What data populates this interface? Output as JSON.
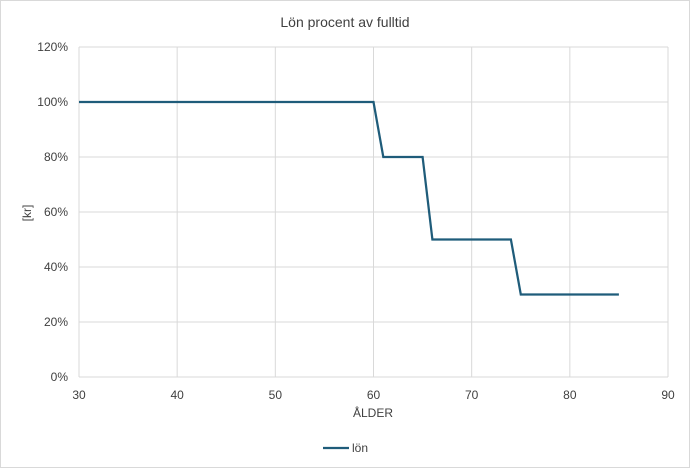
{
  "chart_data": {
    "type": "line",
    "title": "Lön procent av fulltid",
    "xlabel": "ÅLDER",
    "ylabel": "[kr]",
    "xlim": [
      30,
      90
    ],
    "ylim": [
      0,
      120
    ],
    "x_ticks": [
      "30",
      "40",
      "50",
      "60",
      "70",
      "80",
      "90"
    ],
    "y_ticks": [
      "0%",
      "20%",
      "40%",
      "60%",
      "80%",
      "100%",
      "120%"
    ],
    "grid": true,
    "legend_position": "bottom",
    "series": [
      {
        "name": "lön",
        "color": "#1f5c7a",
        "x": [
          30,
          60,
          61,
          65,
          66,
          74,
          75,
          85
        ],
        "y": [
          100,
          100,
          80,
          80,
          50,
          50,
          30,
          30
        ]
      }
    ]
  }
}
